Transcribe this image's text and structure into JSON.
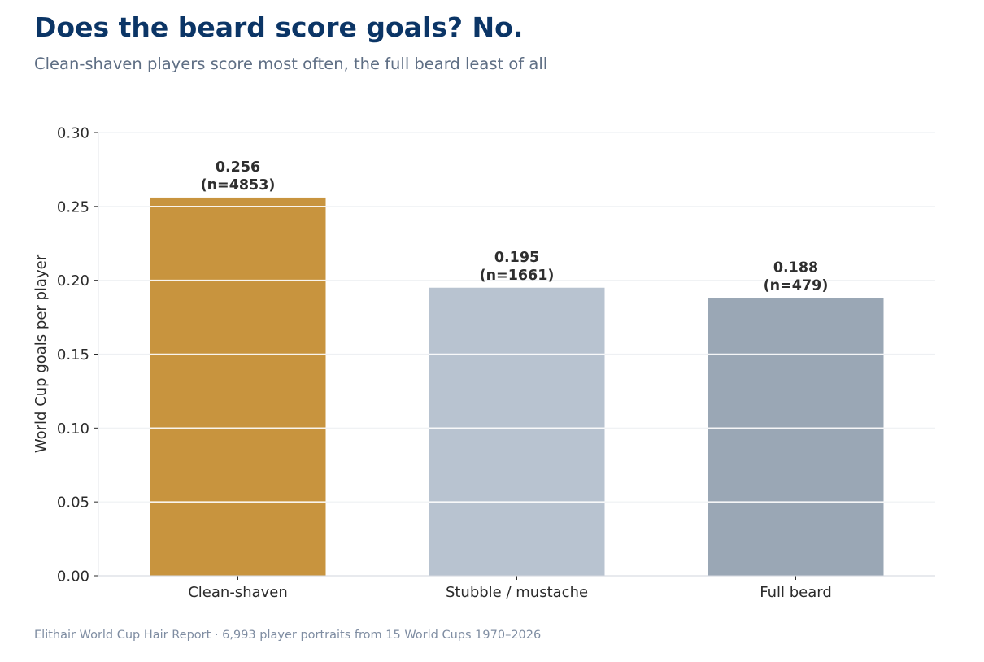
{
  "title": "Does the beard score goals? No.",
  "subtitle": "Clean-shaven players score most often, the full beard least of all",
  "footer": "Elithair World Cup Hair Report  ·  6,993 player portraits from 15 World Cups 1970–2026",
  "chart_data": {
    "type": "bar",
    "title": "Does the beard score goals? No.",
    "subtitle": "Clean-shaven players score most often, the full beard least of all",
    "xlabel": "",
    "ylabel": "World Cup goals per player",
    "categories": [
      "Clean-shaven",
      "Stubble / mustache",
      "Full beard"
    ],
    "values": [
      0.256,
      0.195,
      0.188
    ],
    "value_labels": [
      "0.256",
      "0.195",
      "0.188"
    ],
    "n_labels": [
      "(n=4853)",
      "(n=1661)",
      "(n=479)"
    ],
    "colors": [
      "#c8943e",
      "#b8c3d0",
      "#9aa7b5"
    ],
    "ylim": [
      0,
      0.3
    ],
    "yticks": [
      0.0,
      0.05,
      0.1,
      0.15,
      0.2,
      0.25,
      0.3
    ],
    "ytick_labels": [
      "0.00",
      "0.05",
      "0.10",
      "0.15",
      "0.20",
      "0.25",
      "0.30"
    ],
    "grid": true,
    "legend": "none"
  }
}
